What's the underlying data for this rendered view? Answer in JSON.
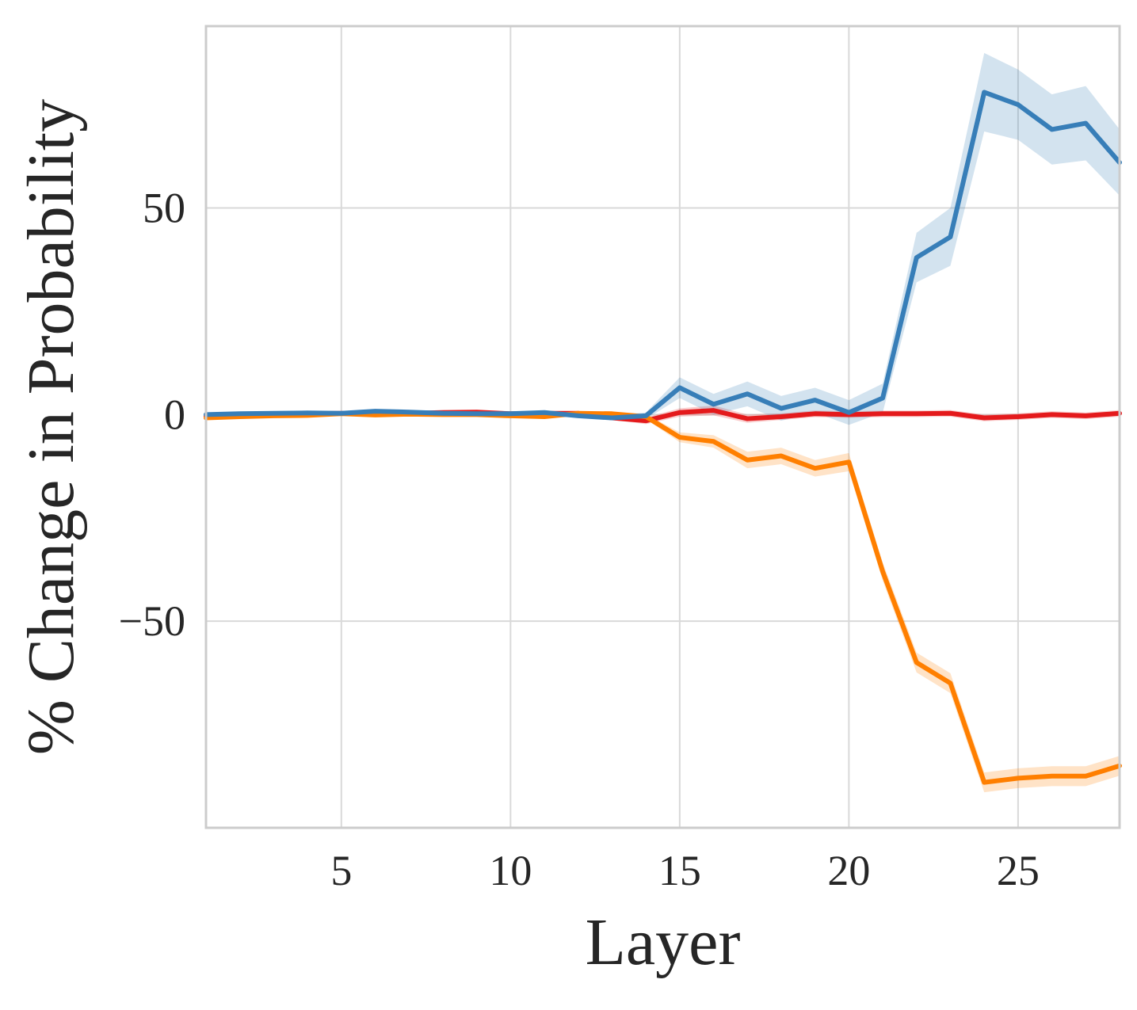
{
  "chart_data": {
    "type": "line",
    "title": "",
    "xlabel": "Layer",
    "ylabel": "% Change in Probability",
    "xlim": [
      1,
      28
    ],
    "ylim": [
      -100,
      94
    ],
    "xticks": [
      5,
      10,
      15,
      20,
      25
    ],
    "yticks": [
      -50,
      0,
      50
    ],
    "xtick_labels": [
      "5",
      "10",
      "15",
      "20",
      "25"
    ],
    "ytick_labels": [
      "−50",
      "0",
      "50"
    ],
    "grid": true,
    "legend": "none",
    "x": [
      1,
      2,
      3,
      4,
      5,
      6,
      7,
      8,
      9,
      10,
      11,
      12,
      13,
      14,
      15,
      16,
      17,
      18,
      19,
      20,
      21,
      22,
      23,
      24,
      25,
      26,
      27,
      28
    ],
    "series": [
      {
        "color": "#e41a1c",
        "values": [
          -0.4,
          -0.2,
          0,
          0.2,
          0.3,
          0.4,
          0.3,
          0.5,
          0.6,
          0.2,
          0.3,
          0.3,
          -0.8,
          -1.5,
          0.5,
          1,
          -1,
          -0.5,
          0.2,
          0,
          0.2,
          0.2,
          0.3,
          -0.8,
          -0.5,
          0,
          -0.3,
          0.3
        ],
        "band": [
          0.4,
          0.4,
          0.4,
          0.4,
          0.4,
          0.4,
          0.4,
          0.4,
          0.4,
          0.4,
          0.4,
          0.4,
          0.5,
          0.8,
          1,
          1.2,
          1,
          0.8,
          0.8,
          0.8,
          0.8,
          0.8,
          0.8,
          0.8,
          0.8,
          0.8,
          0.8,
          0.8
        ]
      },
      {
        "color": "#ff7f00",
        "values": [
          -0.8,
          -0.5,
          -0.3,
          -0.2,
          0.2,
          -0.1,
          0.1,
          0,
          0,
          -0.3,
          -0.5,
          0.3,
          0.2,
          -0.5,
          -5.5,
          -6.5,
          -11,
          -10,
          -13,
          -11.5,
          -38,
          -60,
          -65,
          -89,
          -88,
          -87.5,
          -87.5,
          -85
        ],
        "band": [
          0.4,
          0.4,
          0.4,
          0.4,
          0.4,
          0.4,
          0.4,
          0.4,
          0.4,
          0.4,
          0.4,
          0.4,
          0.4,
          0.6,
          1.2,
          1.5,
          2,
          2,
          2,
          2.2,
          2.2,
          2.4,
          2.4,
          2.4,
          2.4,
          2.4,
          2.4,
          2.4
        ]
      },
      {
        "color": "#377eb8",
        "values": [
          0,
          0.2,
          0.3,
          0.4,
          0.3,
          0.8,
          0.6,
          0.3,
          0.2,
          0.2,
          0.5,
          -0.3,
          -0.8,
          -0.3,
          6.5,
          2.5,
          5,
          1.5,
          3.5,
          0.5,
          4,
          38,
          43,
          78,
          75,
          69,
          70.5,
          61
        ],
        "band": [
          0.5,
          0.5,
          0.5,
          0.5,
          0.5,
          0.5,
          0.5,
          0.5,
          0.5,
          0.5,
          0.5,
          0.5,
          0.6,
          0.8,
          2.5,
          2.5,
          3,
          3,
          3,
          3,
          3.5,
          6,
          7,
          9.5,
          8.5,
          8.5,
          9,
          8
        ]
      }
    ]
  }
}
